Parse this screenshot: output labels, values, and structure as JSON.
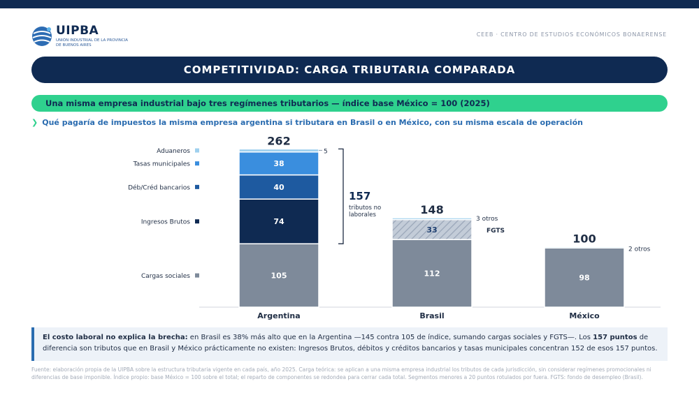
{
  "brand": {
    "name": "UIPBA",
    "subtitle": "UNIÓN INDUSTRIAL DE LA PROVINCIA DE BUENOS AIRES",
    "org": "CEEB · CENTRO DE ESTUDIOS ECONÓMICOS BONAERENSE"
  },
  "header": {
    "title": "COMPETITIVIDAD: CARGA TRIBUTARIA COMPARADA",
    "subtitle": "Una misma empresa industrial bajo tres regímenes tributarios — índice base México = 100 (2025)",
    "question": "Qué pagaría de impuestos la misma empresa argentina si tributara en Brasil o en México, con su misma escala de operación"
  },
  "chart_data": {
    "type": "bar",
    "stacked": true,
    "categories": [
      "Argentina",
      "Brasil",
      "México"
    ],
    "totals": [
      262,
      148,
      100
    ],
    "series": [
      {
        "name": "Cargas sociales",
        "values": [
          105,
          112,
          98
        ],
        "color": "#7e8a9a"
      },
      {
        "name": "Ingresos Brutos",
        "values": [
          74,
          0,
          0
        ],
        "color": "#0f2a52"
      },
      {
        "name": "Déb/Créd bancarios",
        "values": [
          40,
          0,
          0
        ],
        "color": "#1e5aa0"
      },
      {
        "name": "Tasas municipales",
        "values": [
          38,
          0,
          0
        ],
        "color": "#3a8ede"
      },
      {
        "name": "FGTS",
        "values": [
          0,
          33,
          0
        ],
        "color": "#c3ccd8",
        "pattern": "hatched"
      },
      {
        "name": "Aduaneros / otros",
        "values": [
          5,
          3,
          2
        ],
        "color": "#9fd0ee"
      }
    ],
    "segment_labels": {
      "argentina_otros": "5",
      "brasil_otros": "3 otros",
      "brasil_fgts": "FGTS",
      "mexico_otros": "2 otros"
    },
    "bracket": {
      "value": "157",
      "text": [
        "tributos no",
        "laborales"
      ]
    },
    "legend_labels": [
      "Aduaneros",
      "Tasas municipales",
      "Déb/Créd bancarios",
      "Ingresos Brutos",
      "Cargas sociales"
    ],
    "legend_colors": [
      "#9fd0ee",
      "#3a8ede",
      "#1e5aa0",
      "#0f2a52",
      "#7e8a9a"
    ],
    "ylim": [
      0,
      275
    ]
  },
  "callout": {
    "lead": "El costo laboral no explica la brecha:",
    "text1": " en Brasil es 38% más alto que en la Argentina —145 contra 105 de índice, sumando cargas sociales y FGTS—. Los ",
    "bold2": "157 puntos",
    "text2": " de diferencia son tributos que en Brasil y México prácticamente no existen: Ingresos Brutos, débitos y créditos bancarios y tasas municipales concentran 152 de esos 157 puntos."
  },
  "source": "Fuente: elaboración propia de la UIPBA sobre la estructura tributaria vigente en cada país, año 2025. Carga teórica: se aplican a una misma empresa industrial los tributos de cada jurisdicción, sin considerar regímenes promocionales ni diferencias de base imponible. Índice propio: base México = 100 sobre el total; el reparto de componentes se redondea para cerrar cada total. Segmentos menores a 20 puntos rotulados por fuera. FGTS: fondo de desempleo (Brasil).",
  "colors": {
    "navy": "#0f2a52",
    "green": "#2fd18e",
    "blue": "#2a6cb0"
  }
}
